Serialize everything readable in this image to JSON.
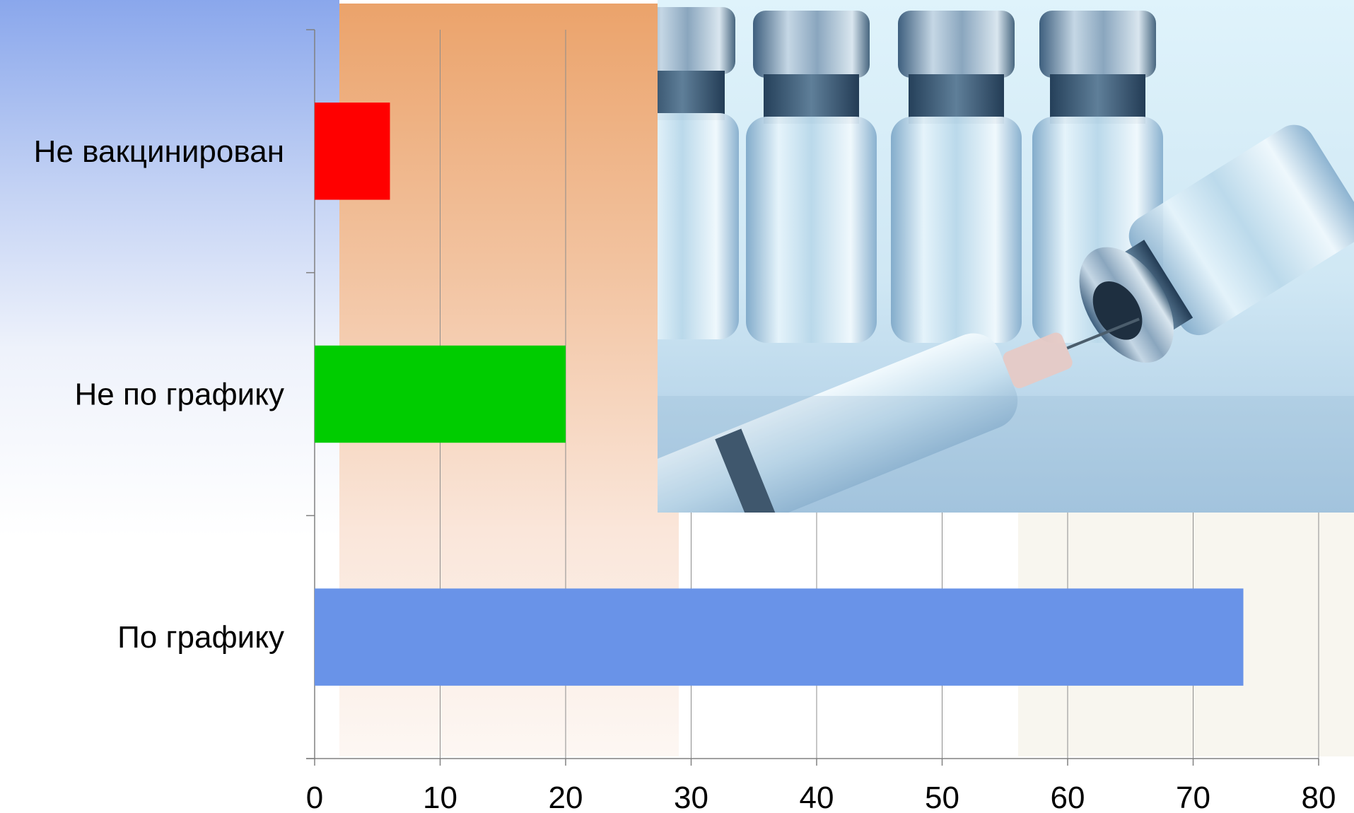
{
  "chart_data": {
    "type": "bar",
    "orientation": "horizontal",
    "categories": [
      "Не вакцинирован",
      "Не по графику",
      "По графику"
    ],
    "values": [
      6,
      20,
      74
    ],
    "colors": [
      "#ff0000",
      "#00cc00",
      "#6993e8"
    ],
    "xlim": [
      0,
      80
    ],
    "xticks": [
      "0",
      "10",
      "20",
      "30",
      "40",
      "50",
      "60",
      "70",
      "80"
    ],
    "grid": "vertical",
    "title": "",
    "xlabel": "",
    "ylabel": ""
  },
  "image": {
    "icon": "vaccine-vials-syringe-photo"
  }
}
